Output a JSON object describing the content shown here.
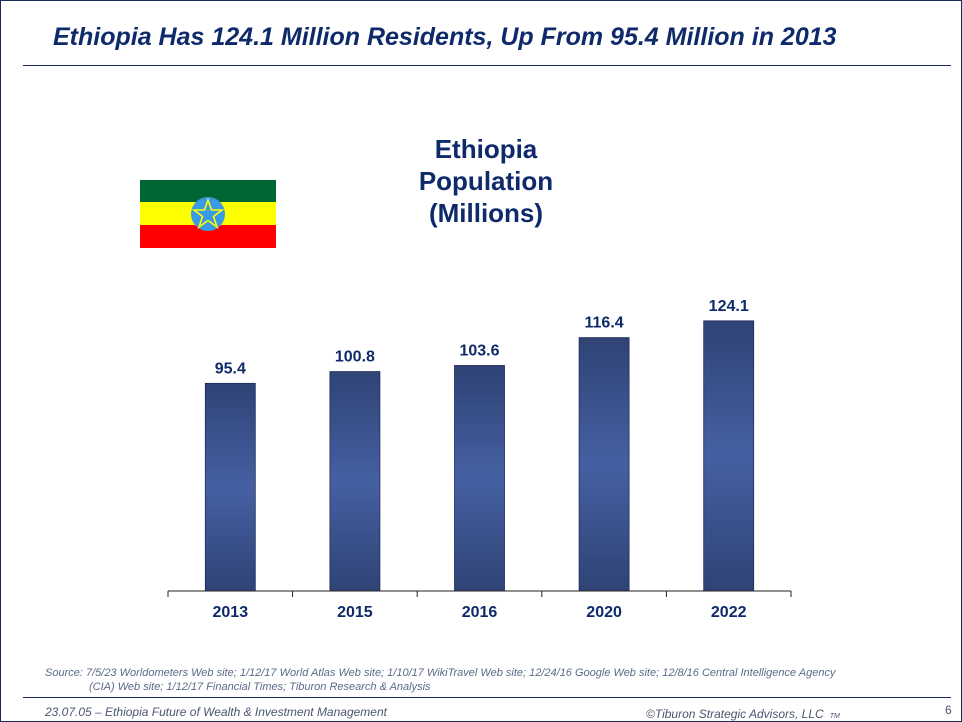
{
  "slide_title": "Ethiopia Has 124.1 Million Residents, Up From 95.4 Million in 2013",
  "flag": {
    "name": "Ethiopia flag",
    "colors": [
      "#006633",
      "#ffff00",
      "#ff0000",
      "#3a9ae6"
    ]
  },
  "chart_data": {
    "type": "bar",
    "title_lines": [
      "Ethiopia",
      "Population",
      "(Millions)"
    ],
    "categories": [
      "2013",
      "2015",
      "2016",
      "2020",
      "2022"
    ],
    "values": [
      95.4,
      100.8,
      103.6,
      116.4,
      124.1
    ],
    "value_labels": [
      "95.4",
      "100.8",
      "103.6",
      "116.4",
      "124.1"
    ],
    "xlabel": "",
    "ylabel": "",
    "ylim": [
      0,
      130
    ],
    "grid": false,
    "bar_color": "#2f4780",
    "bar_highlight": "#4560a3"
  },
  "source": {
    "line1": "Source:  7/5/23 Worldometers Web site; 1/12/17 World Atlas Web site; 1/10/17 WikiTravel Web site; 12/24/16 Google Web site; 12/8/16 Central Intelligence Agency",
    "line2": "(CIA) Web site; 1/12/17 Financial Times; Tiburon Research & Analysis"
  },
  "footer": {
    "left": "23.07.05 – Ethiopia Future of Wealth & Investment Management",
    "right": "©Tiburon Strategic Advisors, LLC",
    "tm": "TM",
    "page": "6"
  }
}
